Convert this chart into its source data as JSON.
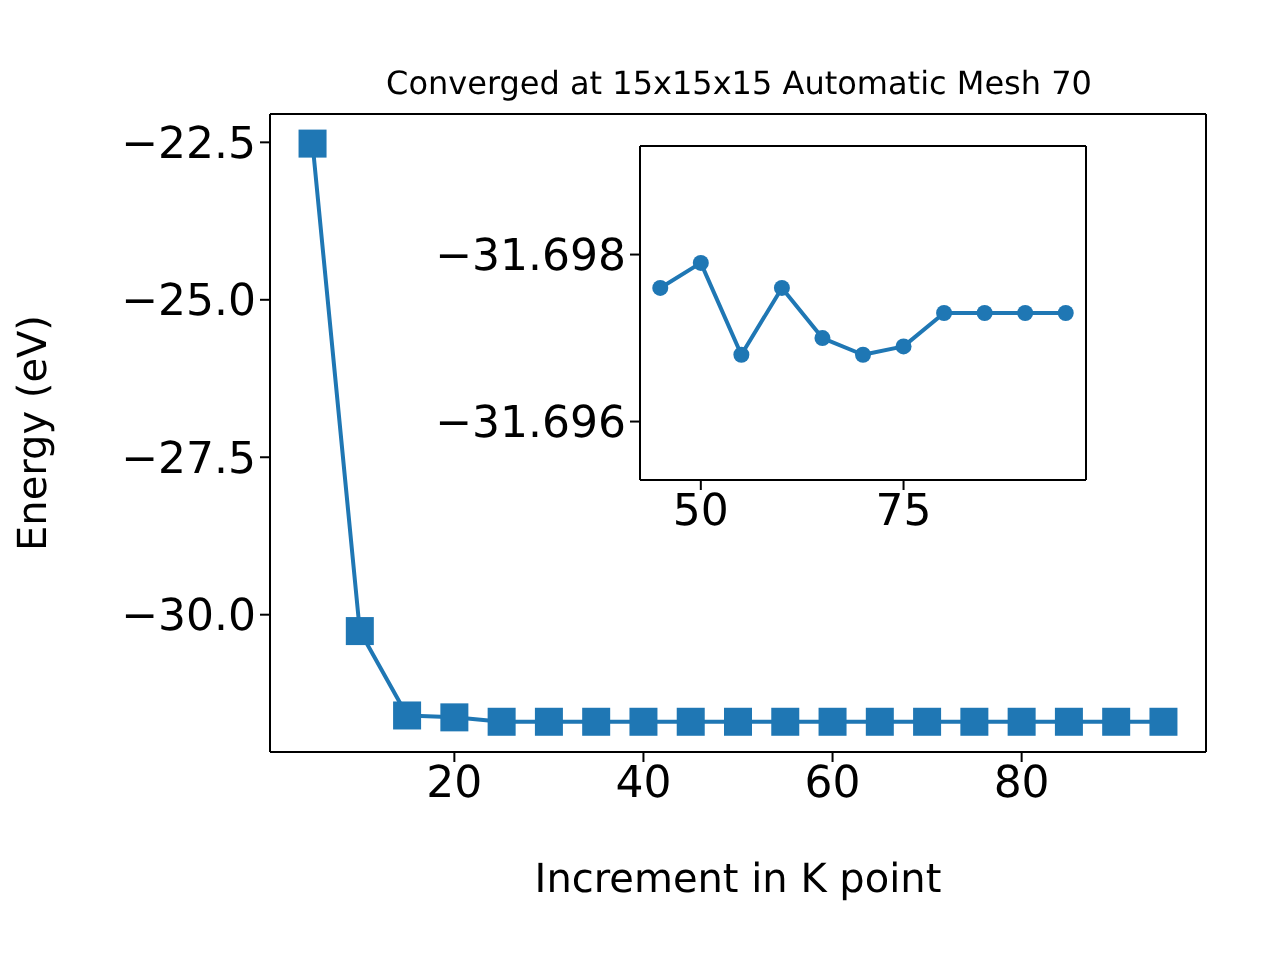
{
  "chart_data": [
    {
      "type": "line",
      "title": "Converged at 15x15x15 Automatic Mesh 70",
      "xlabel": "Increment in K point",
      "ylabel": "Energy (eV)",
      "x": [
        5,
        10,
        15,
        20,
        25,
        30,
        35,
        40,
        45,
        50,
        55,
        60,
        65,
        70,
        75,
        80,
        85,
        90,
        95
      ],
      "series": [
        {
          "color": "#1f77b4",
          "values": [
            -22.52,
            -30.26,
            -31.6,
            -31.63,
            -31.7,
            -31.7,
            -31.7,
            -31.7,
            -31.7,
            -31.7,
            -31.7,
            -31.7,
            -31.7,
            -31.7,
            -31.7,
            -31.7,
            -31.7,
            -31.7,
            -31.7
          ]
        }
      ],
      "xlim": [
        0.5,
        99.5
      ],
      "ylim": [
        -32.18,
        -22.05
      ],
      "xticks": [
        20,
        40,
        60,
        80
      ],
      "yticks": [
        {
          "value": -30.0,
          "label": "−30.0"
        },
        {
          "value": -27.5,
          "label": "−27.5"
        },
        {
          "value": -25.0,
          "label": "−25.0"
        },
        {
          "value": -22.5,
          "label": "−22.5"
        }
      ],
      "marker": "square",
      "grid": false
    },
    {
      "type": "line",
      "x": [
        45,
        50,
        55,
        60,
        65,
        70,
        75,
        80,
        85,
        90,
        95
      ],
      "series": [
        {
          "color": "#1f77b4",
          "values": [
            -31.6976,
            -31.6979,
            -31.6968,
            -31.6976,
            -31.697,
            -31.6968,
            -31.6969,
            -31.6973,
            -31.6973,
            -31.6973,
            -31.6973
          ]
        }
      ],
      "xlim": [
        42.5,
        97.5
      ],
      "ylim": [
        -31.6953,
        -31.6993
      ],
      "xticks": [
        50,
        75
      ],
      "yticks": [
        {
          "value": -31.698,
          "label": "−31.698"
        },
        {
          "value": -31.696,
          "label": "−31.696"
        }
      ],
      "marker": "circle",
      "grid": false
    }
  ]
}
